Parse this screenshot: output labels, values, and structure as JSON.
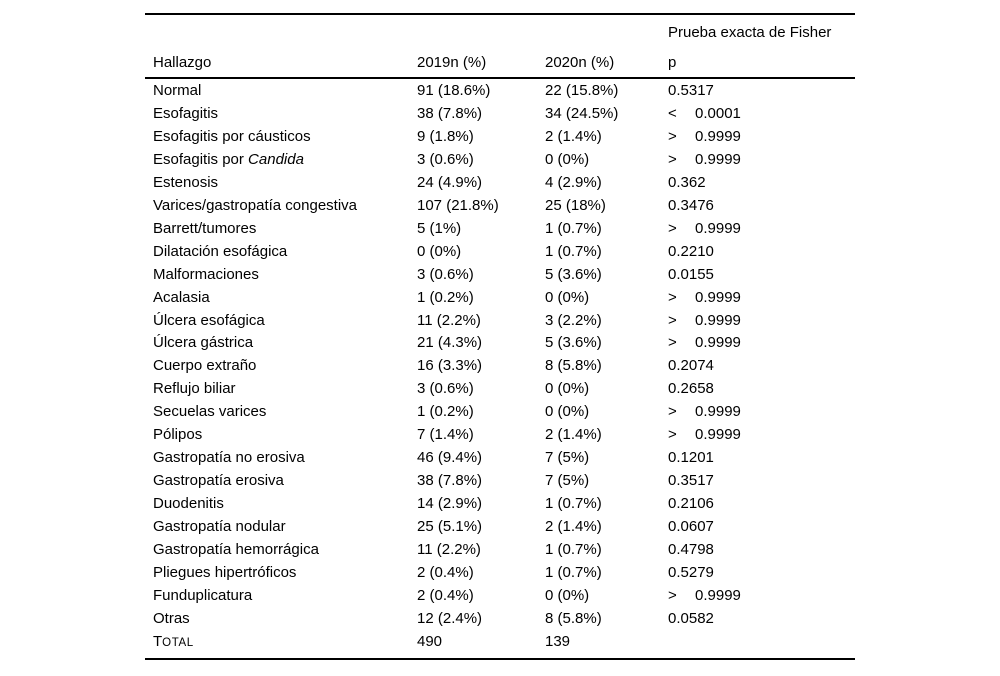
{
  "table": {
    "header": {
      "fisher_label": "Prueba exacta de Fisher",
      "col_hallazgo": "Hallazgo",
      "col_2019": "2019n (%)",
      "col_2020": "2020n (%)",
      "col_p": "p"
    },
    "rows": [
      {
        "hallazgo": "Normal",
        "y2019": "91 (18.6%)",
        "y2020": "22 (15.8%)",
        "p_sign": "",
        "p_value": "0.5317"
      },
      {
        "hallazgo": "Esofagitis",
        "y2019": "38 (7.8%)",
        "y2020": "34 (24.5%)",
        "p_sign": "<",
        "p_value": "0.0001"
      },
      {
        "hallazgo": "Esofagitis por cáusticos",
        "y2019": "9 (1.8%)",
        "y2020": "2 (1.4%)",
        "p_sign": ">",
        "p_value": "0.9999"
      },
      {
        "hallazgo": "Esofagitis por ",
        "hallazgo_italic": "Candida",
        "y2019": "3 (0.6%)",
        "y2020": "0 (0%)",
        "p_sign": ">",
        "p_value": "0.9999"
      },
      {
        "hallazgo": "Estenosis",
        "y2019": "24 (4.9%)",
        "y2020": "4 (2.9%)",
        "p_sign": "",
        "p_value": "0.362"
      },
      {
        "hallazgo": "Varices/gastropatía congestiva",
        "y2019": "107 (21.8%)",
        "y2020": "25 (18%)",
        "p_sign": "",
        "p_value": "0.3476"
      },
      {
        "hallazgo": "Barrett/tumores",
        "y2019": "5 (1%)",
        "y2020": "1 (0.7%)",
        "p_sign": ">",
        "p_value": "0.9999"
      },
      {
        "hallazgo": "Dilatación esofágica",
        "y2019": "0 (0%)",
        "y2020": "1 (0.7%)",
        "p_sign": "",
        "p_value": "0.2210"
      },
      {
        "hallazgo": "Malformaciones",
        "y2019": "3 (0.6%)",
        "y2020": "5 (3.6%)",
        "p_sign": "",
        "p_value": "0.0155"
      },
      {
        "hallazgo": "Acalasia",
        "y2019": "1 (0.2%)",
        "y2020": "0 (0%)",
        "p_sign": ">",
        "p_value": "0.9999"
      },
      {
        "hallazgo": "Úlcera esofágica",
        "y2019": "11 (2.2%)",
        "y2020": "3 (2.2%)",
        "p_sign": ">",
        "p_value": "0.9999"
      },
      {
        "hallazgo": "Úlcera gástrica",
        "y2019": "21 (4.3%)",
        "y2020": "5 (3.6%)",
        "p_sign": ">",
        "p_value": "0.9999"
      },
      {
        "hallazgo": "Cuerpo extraño",
        "y2019": "16 (3.3%)",
        "y2020": "8 (5.8%)",
        "p_sign": "",
        "p_value": "0.2074"
      },
      {
        "hallazgo": "Reflujo biliar",
        "y2019": "3 (0.6%)",
        "y2020": "0 (0%)",
        "p_sign": "",
        "p_value": "0.2658"
      },
      {
        "hallazgo": "Secuelas varices",
        "y2019": "1 (0.2%)",
        "y2020": "0 (0%)",
        "p_sign": ">",
        "p_value": "0.9999"
      },
      {
        "hallazgo": "Pólipos",
        "y2019": "7 (1.4%)",
        "y2020": "2 (1.4%)",
        "p_sign": ">",
        "p_value": "0.9999"
      },
      {
        "hallazgo": "Gastropatía no erosiva",
        "y2019": "46 (9.4%)",
        "y2020": "7 (5%)",
        "p_sign": "",
        "p_value": "0.1201"
      },
      {
        "hallazgo": "Gastropatía erosiva",
        "y2019": "38 (7.8%)",
        "y2020": "7 (5%)",
        "p_sign": "",
        "p_value": "0.3517"
      },
      {
        "hallazgo": "Duodenitis",
        "y2019": "14 (2.9%)",
        "y2020": "1 (0.7%)",
        "p_sign": "",
        "p_value": "0.2106"
      },
      {
        "hallazgo": "Gastropatía nodular",
        "y2019": "25 (5.1%)",
        "y2020": "2 (1.4%)",
        "p_sign": "",
        "p_value": "0.0607"
      },
      {
        "hallazgo": "Gastropatía hemorrágica",
        "y2019": "11 (2.2%)",
        "y2020": "1 (0.7%)",
        "p_sign": "",
        "p_value": "0.4798"
      },
      {
        "hallazgo": "Pliegues hipertróficos",
        "y2019": "2 (0.4%)",
        "y2020": "1 (0.7%)",
        "p_sign": "",
        "p_value": "0.5279"
      },
      {
        "hallazgo": "Funduplicatura",
        "y2019": "2 (0.4%)",
        "y2020": "0 (0%)",
        "p_sign": ">",
        "p_value": "0.9999"
      },
      {
        "hallazgo": "Otras",
        "y2019": "12 (2.4%)",
        "y2020": "8 (5.8%)",
        "p_sign": "",
        "p_value": "0.0582"
      },
      {
        "hallazgo": "Total",
        "smallcaps": true,
        "y2019": "490",
        "y2020": "139",
        "p_sign": "",
        "p_value": ""
      }
    ]
  }
}
